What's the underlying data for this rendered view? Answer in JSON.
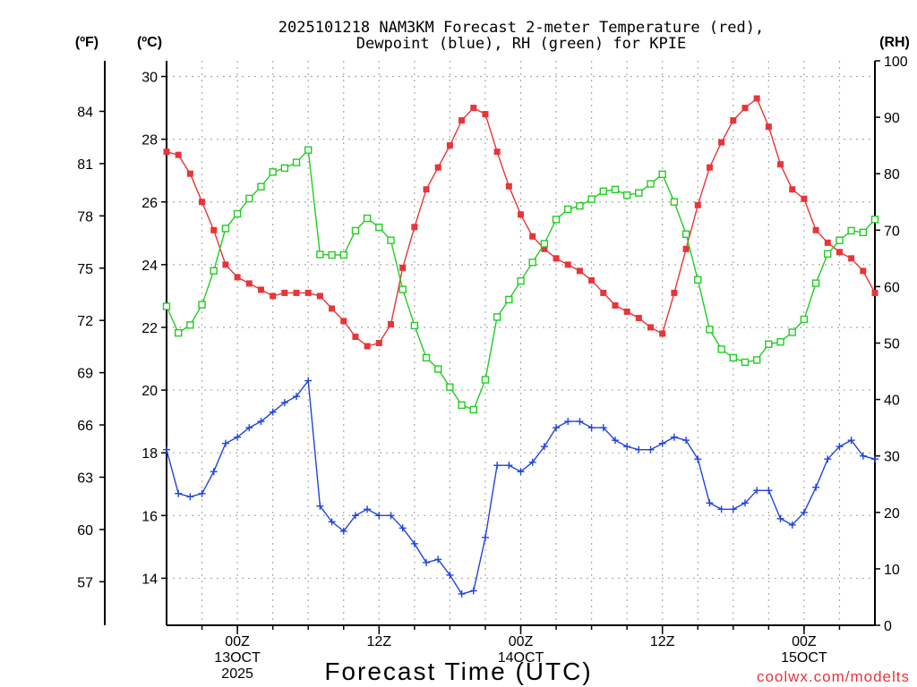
{
  "chart_data": {
    "type": "line",
    "title_line1": "2025101218 NAM3KM Forecast 2-meter Temperature (red),",
    "title_line2": "Dewpoint (blue), RH (green) for KPIE",
    "xlabel": "Forecast Time (UTC)",
    "credit": "coolwx.com/modelts",
    "unit_f": "(ºF)",
    "unit_c": "(ºC)",
    "unit_rh": "(RH)",
    "ylim_c": [
      12.5,
      30.5
    ],
    "ylim_rh": [
      0,
      100
    ],
    "x_range": [
      0,
      60
    ],
    "grid": true,
    "celsius_ticks": [
      14,
      16,
      18,
      20,
      22,
      24,
      26,
      28,
      30
    ],
    "fahrenheit_ticks": [
      57,
      60,
      63,
      66,
      69,
      72,
      75,
      78,
      81,
      84
    ],
    "rh_ticks": [
      0,
      10,
      20,
      30,
      40,
      50,
      60,
      70,
      80,
      90,
      100
    ],
    "x_ticks": [
      {
        "hour": 6,
        "label": "00Z",
        "sublabel": "13OCT",
        "year": "2025"
      },
      {
        "hour": 18,
        "label": "12Z",
        "sublabel": "",
        "year": ""
      },
      {
        "hour": 30,
        "label": "00Z",
        "sublabel": "14OCT",
        "year": ""
      },
      {
        "hour": 42,
        "label": "12Z",
        "sublabel": "",
        "year": ""
      },
      {
        "hour": 54,
        "label": "00Z",
        "sublabel": "15OCT",
        "year": ""
      }
    ],
    "series": [
      {
        "name": "Temperature (°C)",
        "color": "#e8343a",
        "marker": "filled-square",
        "axis": "celsius",
        "values": [
          27.6,
          27.5,
          26.9,
          26.0,
          25.1,
          24.0,
          23.6,
          23.4,
          23.2,
          23.0,
          23.1,
          23.1,
          23.1,
          23.0,
          22.6,
          22.2,
          21.7,
          21.4,
          21.5,
          22.1,
          23.9,
          25.2,
          26.4,
          27.1,
          27.8,
          28.6,
          29.0,
          28.8,
          27.6,
          26.5,
          25.6,
          24.9,
          24.5,
          24.2,
          24.0,
          23.8,
          23.5,
          23.1,
          22.7,
          22.5,
          22.3,
          22.0,
          21.8,
          23.1,
          24.5,
          25.9,
          27.1,
          27.9,
          28.6,
          29.0,
          29.3,
          28.4,
          27.2,
          26.4,
          26.1,
          25.1,
          24.7,
          24.4,
          24.2,
          23.8,
          23.1
        ]
      },
      {
        "name": "Dewpoint (°C)",
        "color": "#2244dd",
        "marker": "plus",
        "axis": "celsius",
        "values": [
          18.1,
          16.7,
          16.6,
          16.7,
          17.4,
          18.3,
          18.5,
          18.8,
          19.0,
          19.3,
          19.6,
          19.8,
          20.3,
          16.3,
          15.8,
          15.5,
          16.0,
          16.2,
          16.0,
          16.0,
          15.6,
          15.1,
          14.5,
          14.6,
          14.1,
          13.5,
          13.6,
          15.3,
          17.6,
          17.6,
          17.4,
          17.7,
          18.2,
          18.8,
          19.0,
          19.0,
          18.8,
          18.8,
          18.4,
          18.2,
          18.1,
          18.1,
          18.3,
          18.5,
          18.4,
          17.8,
          16.4,
          16.2,
          16.2,
          16.4,
          16.8,
          16.8,
          15.9,
          15.7,
          16.1,
          16.9,
          17.8,
          18.2,
          18.4,
          17.9,
          17.8
        ]
      },
      {
        "name": "RH (%)",
        "color": "#22cc22",
        "marker": "open-square",
        "axis": "rh",
        "values": [
          56.5,
          51.8,
          53.2,
          56.8,
          62.8,
          70.3,
          72.9,
          75.6,
          77.7,
          80.3,
          81.0,
          82.0,
          84.2,
          65.7,
          65.6,
          65.6,
          69.9,
          72.1,
          70.5,
          68.2,
          59.5,
          53.1,
          47.4,
          45.4,
          42.2,
          39.0,
          38.2,
          43.5,
          54.6,
          57.7,
          61.0,
          64.3,
          67.6,
          71.9,
          73.7,
          74.3,
          75.5,
          76.9,
          77.2,
          76.2,
          76.6,
          78.2,
          79.9,
          75.0,
          69.3,
          61.2,
          52.4,
          48.9,
          47.4,
          46.6,
          47.0,
          49.8,
          50.2,
          51.9,
          54.2,
          60.6,
          65.8,
          68.2,
          69.9,
          69.6,
          71.9
        ]
      }
    ]
  }
}
